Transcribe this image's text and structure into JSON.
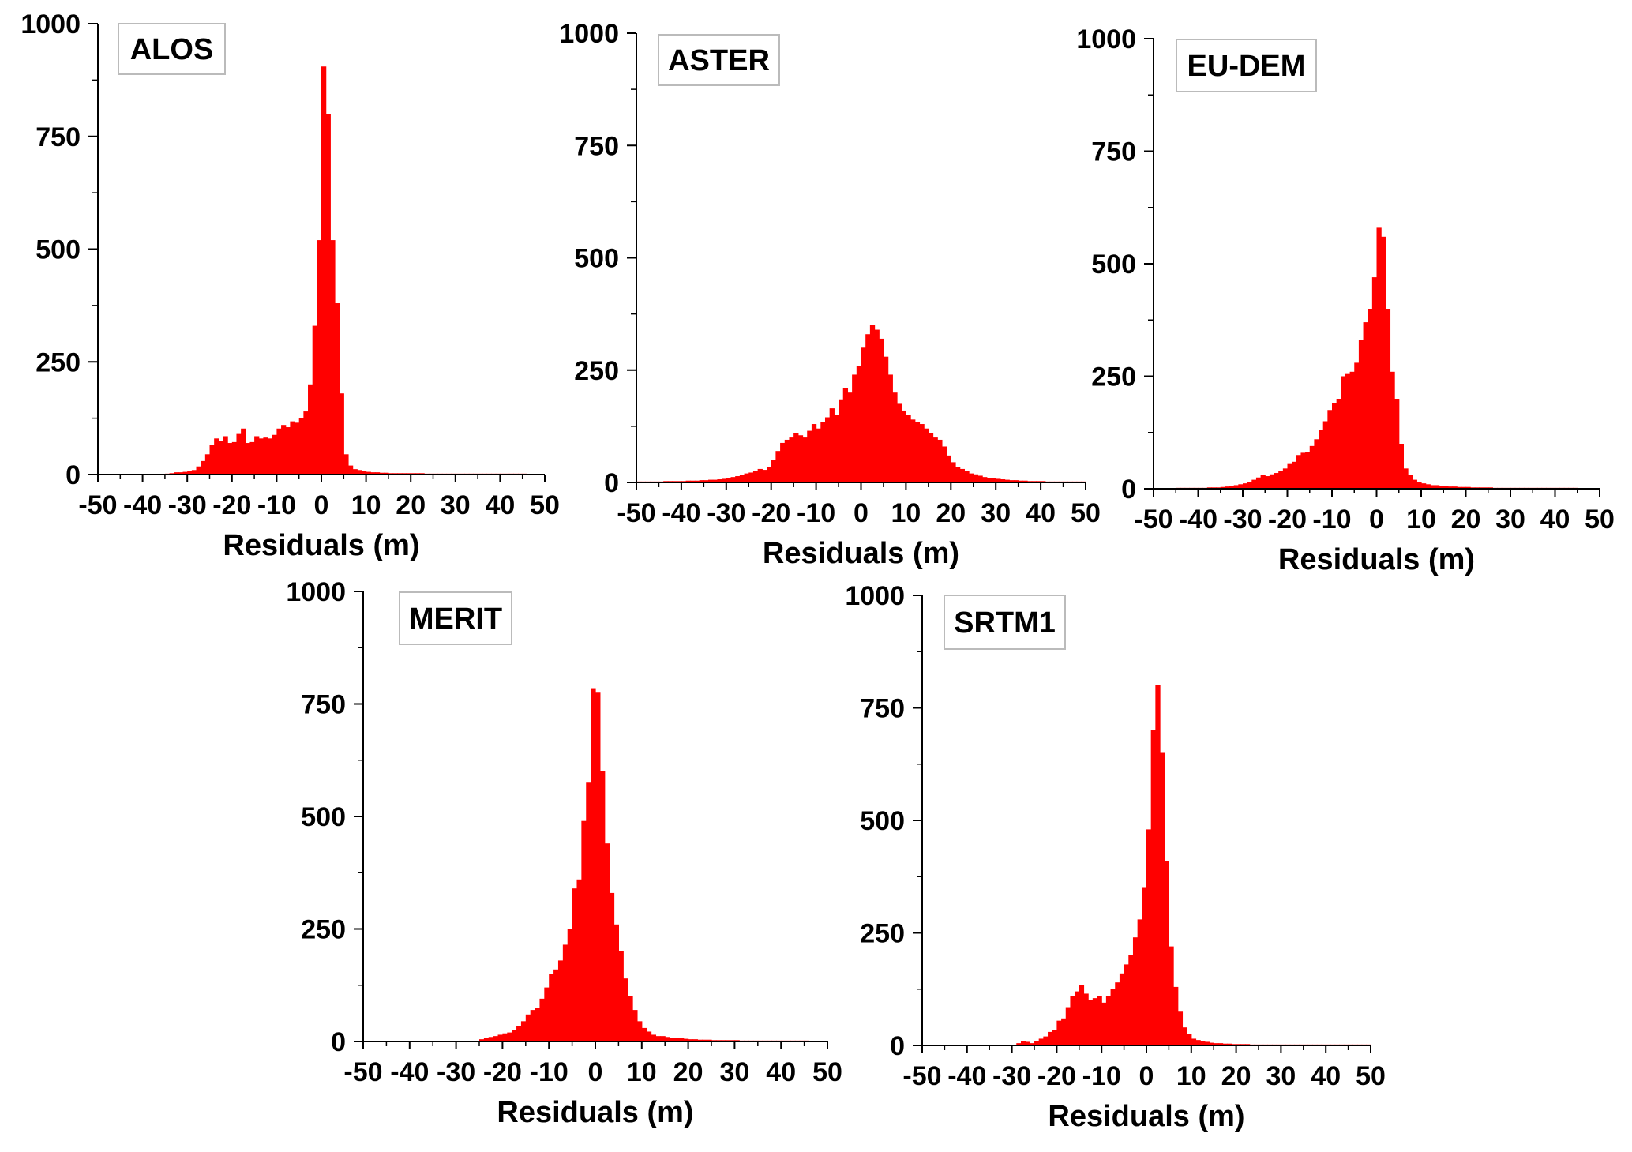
{
  "colors": {
    "bar": "#ff0000",
    "axis": "#000000",
    "label_box_border": "#bbbbbb"
  },
  "chart_data": [
    {
      "type": "bar",
      "panel_label": "ALOS",
      "xlabel": "Residuals (m)",
      "ylabel": "",
      "xlim": [
        -50,
        50
      ],
      "ylim": [
        0,
        1000
      ],
      "x_ticks": [
        "-50",
        "-40",
        "-30",
        "-20",
        "-10",
        "0",
        "10",
        "20",
        "30",
        "40",
        "50"
      ],
      "y_ticks": [
        "0",
        "250",
        "500",
        "750",
        "1000"
      ],
      "bin_width": 1,
      "x": [
        -35,
        -34,
        -33,
        -32,
        -31,
        -30,
        -29,
        -28,
        -27,
        -26,
        -25,
        -24,
        -23,
        -22,
        -21,
        -20,
        -19,
        -18,
        -17,
        -16,
        -15,
        -14,
        -13,
        -12,
        -11,
        -10,
        -9,
        -8,
        -7,
        -6,
        -5,
        -4,
        -3,
        -2,
        -1,
        0,
        1,
        2,
        3,
        4,
        5,
        6,
        7,
        8,
        9,
        10,
        11,
        12,
        13,
        14,
        15,
        16,
        17,
        18,
        19,
        20,
        21,
        22,
        23,
        24,
        25,
        26,
        27,
        28,
        29,
        30,
        31,
        32,
        33,
        34,
        35,
        36,
        37,
        38,
        39,
        40,
        41,
        42,
        43,
        44,
        45
      ],
      "values": [
        2,
        3,
        5,
        5,
        6,
        8,
        10,
        18,
        30,
        45,
        65,
        80,
        75,
        85,
        70,
        72,
        90,
        102,
        70,
        72,
        85,
        80,
        82,
        80,
        88,
        102,
        110,
        105,
        118,
        115,
        125,
        140,
        200,
        330,
        520,
        905,
        800,
        520,
        380,
        180,
        45,
        20,
        12,
        10,
        8,
        6,
        5,
        5,
        4,
        4,
        3,
        3,
        3,
        3,
        3,
        3,
        3,
        3,
        2,
        2,
        2,
        2,
        2,
        2,
        2,
        2,
        2,
        2,
        2,
        2,
        2,
        2,
        2,
        2,
        2,
        2,
        2,
        2,
        2,
        2,
        2
      ]
    },
    {
      "type": "bar",
      "panel_label": "ASTER",
      "xlabel": "Residuals (m)",
      "ylabel": "",
      "xlim": [
        -50,
        50
      ],
      "ylim": [
        0,
        1000
      ],
      "x_ticks": [
        "-50",
        "-40",
        "-30",
        "-20",
        "-10",
        "0",
        "10",
        "20",
        "30",
        "40",
        "50"
      ],
      "y_ticks": [
        "0",
        "250",
        "500",
        "750",
        "1000"
      ],
      "bin_width": 1,
      "x": [
        -50,
        -49,
        -48,
        -47,
        -46,
        -45,
        -44,
        -43,
        -42,
        -41,
        -40,
        -39,
        -38,
        -37,
        -36,
        -35,
        -34,
        -33,
        -32,
        -31,
        -30,
        -29,
        -28,
        -27,
        -26,
        -25,
        -24,
        -23,
        -22,
        -21,
        -20,
        -19,
        -18,
        -17,
        -16,
        -15,
        -14,
        -13,
        -12,
        -11,
        -10,
        -9,
        -8,
        -7,
        -6,
        -5,
        -4,
        -3,
        -2,
        -1,
        0,
        1,
        2,
        3,
        4,
        5,
        6,
        7,
        8,
        9,
        10,
        11,
        12,
        13,
        14,
        15,
        16,
        17,
        18,
        19,
        20,
        21,
        22,
        23,
        24,
        25,
        26,
        27,
        28,
        29,
        30,
        31,
        32,
        33,
        34,
        35,
        36,
        37,
        38,
        39,
        40,
        41,
        42,
        43,
        44,
        45,
        46,
        47,
        48,
        49
      ],
      "values": [
        2,
        2,
        2,
        2,
        2,
        2,
        3,
        3,
        3,
        3,
        3,
        4,
        4,
        4,
        5,
        5,
        6,
        6,
        7,
        8,
        10,
        12,
        14,
        16,
        20,
        22,
        25,
        30,
        28,
        35,
        50,
        70,
        88,
        95,
        100,
        110,
        105,
        100,
        115,
        130,
        120,
        135,
        145,
        165,
        150,
        185,
        210,
        200,
        240,
        260,
        300,
        330,
        350,
        340,
        320,
        280,
        240,
        200,
        175,
        160,
        150,
        140,
        135,
        130,
        120,
        110,
        100,
        95,
        80,
        60,
        45,
        35,
        30,
        25,
        20,
        18,
        15,
        12,
        10,
        10,
        8,
        7,
        6,
        5,
        5,
        4,
        4,
        3,
        3,
        3,
        3,
        2,
        2,
        2,
        2,
        2,
        2,
        2,
        2,
        2
      ]
    },
    {
      "type": "bar",
      "panel_label": "EU-DEM",
      "xlabel": "Residuals (m)",
      "ylabel": "",
      "xlim": [
        -50,
        50
      ],
      "ylim": [
        0,
        1000
      ],
      "x_ticks": [
        "-50",
        "-40",
        "-30",
        "-20",
        "-10",
        "0",
        "10",
        "20",
        "30",
        "40",
        "50"
      ],
      "y_ticks": [
        "0",
        "250",
        "500",
        "750",
        "1000"
      ],
      "bin_width": 1,
      "x": [
        -45,
        -44,
        -43,
        -42,
        -41,
        -40,
        -39,
        -38,
        -37,
        -36,
        -35,
        -34,
        -33,
        -32,
        -31,
        -30,
        -29,
        -28,
        -27,
        -26,
        -25,
        -24,
        -23,
        -22,
        -21,
        -20,
        -19,
        -18,
        -17,
        -16,
        -15,
        -14,
        -13,
        -12,
        -11,
        -10,
        -9,
        -8,
        -7,
        -6,
        -5,
        -4,
        -3,
        -2,
        -1,
        0,
        1,
        2,
        3,
        4,
        5,
        6,
        7,
        8,
        9,
        10,
        11,
        12,
        13,
        14,
        15,
        16,
        17,
        18,
        19,
        20,
        21,
        22,
        23,
        24,
        25,
        26,
        27,
        28,
        29,
        30,
        31,
        32,
        33,
        34,
        35,
        36,
        37,
        38,
        39,
        40,
        41,
        42,
        43,
        44
      ],
      "values": [
        2,
        2,
        2,
        2,
        2,
        2,
        2,
        3,
        3,
        3,
        4,
        5,
        6,
        8,
        10,
        12,
        15,
        20,
        25,
        30,
        28,
        32,
        35,
        40,
        45,
        55,
        60,
        75,
        80,
        82,
        95,
        110,
        130,
        150,
        175,
        190,
        200,
        250,
        255,
        260,
        280,
        330,
        370,
        400,
        470,
        580,
        560,
        400,
        260,
        200,
        100,
        45,
        30,
        20,
        15,
        12,
        10,
        8,
        8,
        6,
        6,
        5,
        5,
        4,
        4,
        4,
        3,
        3,
        3,
        3,
        3,
        2,
        2,
        2,
        2,
        2,
        2,
        2,
        2,
        2,
        2,
        2,
        2,
        2,
        2,
        2,
        2,
        2,
        2,
        2
      ]
    },
    {
      "type": "bar",
      "panel_label": "MERIT",
      "xlabel": "Residuals (m)",
      "ylabel": "",
      "xlim": [
        -50,
        50
      ],
      "ylim": [
        0,
        1000
      ],
      "x_ticks": [
        "-50",
        "-40",
        "-30",
        "-20",
        "-10",
        "0",
        "10",
        "20",
        "30",
        "40",
        "50"
      ],
      "y_ticks": [
        "0",
        "250",
        "500",
        "750",
        "1000"
      ],
      "bin_width": 1,
      "x": [
        -25,
        -24,
        -23,
        -22,
        -21,
        -20,
        -19,
        -18,
        -17,
        -16,
        -15,
        -14,
        -13,
        -12,
        -11,
        -10,
        -9,
        -8,
        -7,
        -6,
        -5,
        -4,
        -3,
        -2,
        -1,
        0,
        1,
        2,
        3,
        4,
        5,
        6,
        7,
        8,
        9,
        10,
        11,
        12,
        13,
        14,
        15,
        16,
        17,
        18,
        19,
        20,
        21,
        22,
        23,
        24,
        25,
        26,
        27,
        28,
        29,
        30,
        31,
        32,
        33,
        34,
        35,
        36,
        37,
        38,
        39,
        40,
        41,
        42,
        43,
        44,
        45
      ],
      "values": [
        5,
        8,
        10,
        12,
        15,
        18,
        20,
        25,
        35,
        45,
        60,
        70,
        75,
        95,
        120,
        150,
        160,
        180,
        215,
        250,
        340,
        360,
        490,
        575,
        785,
        775,
        600,
        440,
        330,
        260,
        200,
        140,
        100,
        70,
        45,
        30,
        22,
        15,
        12,
        12,
        10,
        8,
        8,
        7,
        6,
        5,
        5,
        4,
        4,
        4,
        3,
        3,
        3,
        3,
        3,
        3,
        2,
        2,
        2,
        2,
        2,
        2,
        2,
        2,
        2,
        2,
        2,
        2,
        2,
        2,
        2
      ]
    },
    {
      "type": "bar",
      "panel_label": "SRTM1",
      "xlabel": "Residuals (m)",
      "ylabel": "",
      "xlim": [
        -50,
        50
      ],
      "ylim": [
        0,
        1000
      ],
      "x_ticks": [
        "-50",
        "-40",
        "-30",
        "-20",
        "-10",
        "0",
        "10",
        "20",
        "30",
        "40",
        "50"
      ],
      "y_ticks": [
        "0",
        "250",
        "500",
        "750",
        "1000"
      ],
      "bin_width": 1,
      "x": [
        -29,
        -28,
        -27,
        -26,
        -25,
        -24,
        -23,
        -22,
        -21,
        -20,
        -19,
        -18,
        -17,
        -16,
        -15,
        -14,
        -13,
        -12,
        -11,
        -10,
        -9,
        -8,
        -7,
        -6,
        -5,
        -4,
        -3,
        -2,
        -1,
        0,
        1,
        2,
        3,
        4,
        5,
        6,
        7,
        8,
        9,
        10,
        11,
        12,
        13,
        14,
        15,
        16,
        17,
        18,
        19,
        20,
        21,
        22,
        23,
        24,
        25,
        26,
        27,
        28,
        29,
        30,
        31,
        32,
        33,
        34,
        35,
        36,
        37,
        38,
        39,
        40,
        41,
        42,
        43,
        44,
        45,
        46,
        47,
        48,
        49
      ],
      "values": [
        5,
        10,
        8,
        5,
        10,
        15,
        20,
        30,
        35,
        55,
        60,
        85,
        110,
        120,
        135,
        115,
        100,
        105,
        110,
        95,
        110,
        125,
        140,
        160,
        180,
        200,
        240,
        280,
        350,
        480,
        700,
        800,
        650,
        410,
        220,
        130,
        75,
        40,
        25,
        15,
        12,
        10,
        8,
        6,
        5,
        5,
        4,
        4,
        3,
        3,
        3,
        3,
        2,
        2,
        2,
        2,
        2,
        2,
        2,
        2,
        2,
        2,
        2,
        2,
        2,
        2,
        2,
        2,
        2,
        2,
        2,
        2,
        2,
        2,
        2,
        2,
        2,
        2,
        2
      ]
    }
  ]
}
